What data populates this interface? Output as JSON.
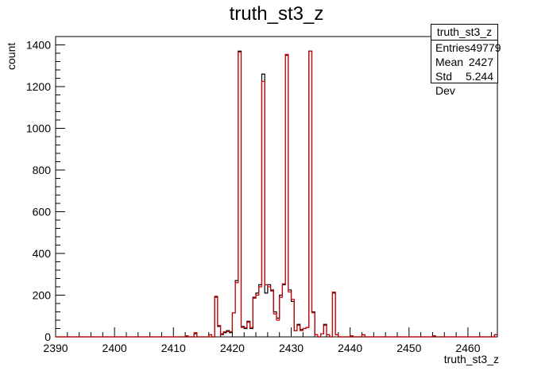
{
  "chart_data": {
    "type": "histogram",
    "title": "truth_st3_z",
    "xlabel": "truth_st3_z",
    "ylabel": "count",
    "xlim": [
      2390,
      2465
    ],
    "ylim": [
      0,
      1440
    ],
    "bin_width": 0.5,
    "x_ticks": [
      2390,
      2400,
      2410,
      2420,
      2430,
      2440,
      2450,
      2460
    ],
    "y_ticks": [
      0,
      200,
      400,
      600,
      800,
      1000,
      1200,
      1400
    ],
    "series": [
      {
        "color": "#000000",
        "bins": [
          [
            2412.0,
            5
          ],
          [
            2413.5,
            15
          ],
          [
            2416.0,
            10
          ],
          [
            2417.0,
            190
          ],
          [
            2417.5,
            50
          ],
          [
            2418.0,
            15
          ],
          [
            2418.5,
            20
          ],
          [
            2419.0,
            30
          ],
          [
            2419.5,
            20
          ],
          [
            2420.0,
            115
          ],
          [
            2420.5,
            270
          ],
          [
            2421.0,
            1370
          ],
          [
            2421.5,
            50
          ],
          [
            2422.0,
            40
          ],
          [
            2422.5,
            75
          ],
          [
            2423.0,
            40
          ],
          [
            2423.5,
            190
          ],
          [
            2424.0,
            210
          ],
          [
            2424.5,
            250
          ],
          [
            2425.0,
            1260
          ],
          [
            2425.5,
            210
          ],
          [
            2426.0,
            250
          ],
          [
            2426.5,
            225
          ],
          [
            2427.0,
            120
          ],
          [
            2427.5,
            90
          ],
          [
            2428.0,
            200
          ],
          [
            2428.5,
            250
          ],
          [
            2429.0,
            1350
          ],
          [
            2429.5,
            225
          ],
          [
            2430.0,
            170
          ],
          [
            2430.5,
            30
          ],
          [
            2431.0,
            60
          ],
          [
            2431.5,
            35
          ],
          [
            2432.0,
            40
          ],
          [
            2432.5,
            45
          ],
          [
            2433.0,
            1370
          ],
          [
            2433.5,
            120
          ],
          [
            2434.0,
            10
          ],
          [
            2435.0,
            15
          ],
          [
            2435.5,
            60
          ],
          [
            2436.0,
            10
          ],
          [
            2437.0,
            210
          ],
          [
            2437.5,
            10
          ],
          [
            2440.0,
            5
          ],
          [
            2442.0,
            10
          ],
          [
            2454.0,
            5
          ],
          [
            2464.5,
            10
          ]
        ]
      },
      {
        "color": "#d00000",
        "bins": [
          [
            2412.0,
            5
          ],
          [
            2413.5,
            20
          ],
          [
            2416.0,
            10
          ],
          [
            2417.0,
            195
          ],
          [
            2417.5,
            55
          ],
          [
            2418.0,
            10
          ],
          [
            2418.5,
            25
          ],
          [
            2419.0,
            25
          ],
          [
            2419.5,
            25
          ],
          [
            2420.0,
            115
          ],
          [
            2420.5,
            260
          ],
          [
            2421.0,
            1365
          ],
          [
            2421.5,
            45
          ],
          [
            2422.0,
            45
          ],
          [
            2422.5,
            70
          ],
          [
            2423.0,
            45
          ],
          [
            2423.5,
            185
          ],
          [
            2424.0,
            200
          ],
          [
            2424.5,
            240
          ],
          [
            2425.0,
            1225
          ],
          [
            2425.5,
            250
          ],
          [
            2426.0,
            240
          ],
          [
            2426.5,
            220
          ],
          [
            2427.0,
            110
          ],
          [
            2427.5,
            80
          ],
          [
            2428.0,
            190
          ],
          [
            2428.5,
            255
          ],
          [
            2429.0,
            1355
          ],
          [
            2429.5,
            215
          ],
          [
            2430.0,
            180
          ],
          [
            2430.5,
            30
          ],
          [
            2431.0,
            55
          ],
          [
            2431.5,
            30
          ],
          [
            2432.0,
            40
          ],
          [
            2432.5,
            45
          ],
          [
            2433.0,
            1370
          ],
          [
            2433.5,
            115
          ],
          [
            2434.0,
            10
          ],
          [
            2435.0,
            15
          ],
          [
            2435.5,
            55
          ],
          [
            2436.0,
            10
          ],
          [
            2437.0,
            215
          ],
          [
            2437.5,
            10
          ],
          [
            2440.0,
            5
          ],
          [
            2442.0,
            10
          ],
          [
            2454.0,
            5
          ],
          [
            2464.5,
            10
          ]
        ]
      }
    ]
  },
  "stats_box": {
    "title": "truth_st3_z",
    "entries_label": "Entries",
    "entries_value": "49779",
    "mean_label": "Mean",
    "mean_value": "2427",
    "std_label": "Std Dev",
    "std_value": "5.244"
  }
}
